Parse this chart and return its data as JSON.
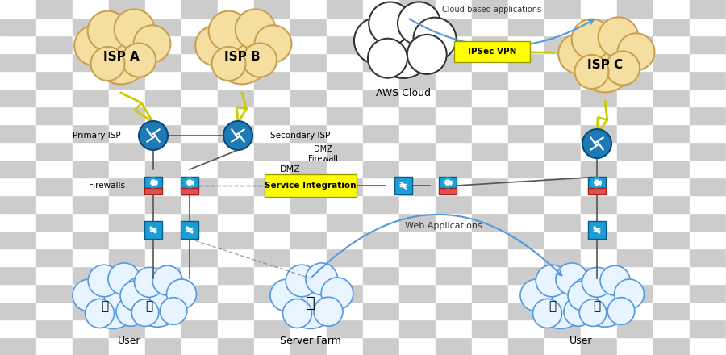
{
  "bg_color": "#d4d0c8",
  "checker_color1": "#cccccc",
  "checker_color2": "#ffffff",
  "isp_cloud_color": "#f5dfa0",
  "isp_cloud_edge": "#c8a050",
  "aws_cloud_color": "#ffffff",
  "aws_cloud_edge": "#333333",
  "router_color": "#1e7ab5",
  "firewall_box_color": "#1a9fd4",
  "firewall_brick_color": "#e05050",
  "switch_color": "#1a9fd4",
  "user_cloud_color": "#e8f4ff",
  "user_cloud_edge": "#5599dd",
  "yellow_label_color": "#ffff00",
  "vpn_label_color": "#ffff00",
  "line_color": "#555555",
  "dashed_line_color": "#4488cc",
  "text_color": "#000000",
  "labels": {
    "isp_a": "ISP A",
    "isp_b": "ISP B",
    "isp_c": "ISP C",
    "aws_cloud": "AWS Cloud",
    "primary_isp": "Primary ISP",
    "secondary_isp": "Secondary ISP",
    "firewalls": "Firewalls",
    "dmz": "DMZ",
    "dmz_firewall": "DMZ\nFirewall",
    "service_integration": "Service Integration",
    "ipsec_vpn": "IPSec VPN",
    "cloud_based_apps": "Cloud-based applications",
    "web_applications": "Web Applications",
    "user_left": "User",
    "server_farm": "Server Farm",
    "user_right": "User"
  }
}
